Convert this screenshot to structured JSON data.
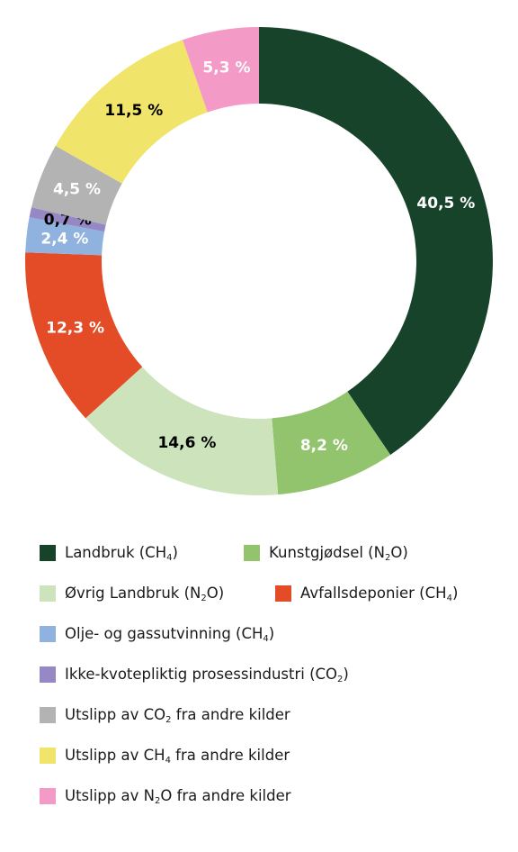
{
  "chart_data": {
    "type": "pie",
    "donut": true,
    "slices": [
      {
        "name": "Landbruk (CH₄)",
        "value": 40.5,
        "label": "40,5 %",
        "color": "#17432a",
        "label_color": "#ffffff"
      },
      {
        "name": "Kunstgjødsel (N₂O)",
        "value": 8.2,
        "label": "8,2 %",
        "color": "#92c46d",
        "label_color": "#ffffff"
      },
      {
        "name": "Øvrig Landbruk (N₂O)",
        "value": 14.6,
        "label": "14,6 %",
        "color": "#cde3bb",
        "label_color": "#000000"
      },
      {
        "name": "Avfallsdeponier (CH₄)",
        "value": 12.3,
        "label": "12,3 %",
        "color": "#e34c26",
        "label_color": "#ffffff"
      },
      {
        "name": "Olje- og gassutvinning (CH₄)",
        "value": 2.4,
        "label": "2,4 %",
        "color": "#8fb2de",
        "label_color": "#ffffff"
      },
      {
        "name": "Ikke-kvotepliktig prosessindustri (CO₂)",
        "value": 0.7,
        "label": "0,7 %",
        "color": "#9688c5",
        "label_color": "#000000"
      },
      {
        "name": "Utslipp av CO₂ fra andre kilder",
        "value": 4.5,
        "label": "4,5 %",
        "color": "#b3b3b3",
        "label_color": "#ffffff"
      },
      {
        "name": "Utslipp av CH₄ fra andre kilder",
        "value": 11.5,
        "label": "11,5 %",
        "color": "#f0e46a",
        "label_color": "#000000"
      },
      {
        "name": "Utslipp av N₂O fra andre kilder",
        "value": 5.3,
        "label": "5,3 %",
        "color": "#f39ac6",
        "label_color": "#ffffff"
      }
    ]
  },
  "legend": {
    "items": [
      {
        "text": "Landbruk (CH",
        "sub": "4",
        "after": ")",
        "color": "#17432a"
      },
      {
        "text": "Kunstgjødsel (N",
        "sub": "2",
        "after": "O)",
        "color": "#92c46d"
      },
      {
        "text": "Øvrig Landbruk (N",
        "sub": "2",
        "after": "O)",
        "color": "#cde3bb"
      },
      {
        "text": "Avfallsdeponier (CH",
        "sub": "4",
        "after": ")",
        "color": "#e34c26"
      },
      {
        "text": "Olje- og gassutvinning (CH",
        "sub": "4",
        "after": ")",
        "color": "#8fb2de"
      },
      {
        "text": "Ikke-kvotepliktig prosessindustri (CO",
        "sub": "2",
        "after": ")",
        "color": "#9688c5"
      },
      {
        "text": "Utslipp av CO",
        "sub": "2",
        "after": " fra andre kilder",
        "color": "#b3b3b3"
      },
      {
        "text": "Utslipp av CH",
        "sub": "4",
        "after": " fra andre kilder",
        "color": "#f0e46a"
      },
      {
        "text": "Utslipp av N",
        "sub": "2",
        "after": "O fra andre kilder",
        "color": "#f39ac6"
      }
    ]
  }
}
